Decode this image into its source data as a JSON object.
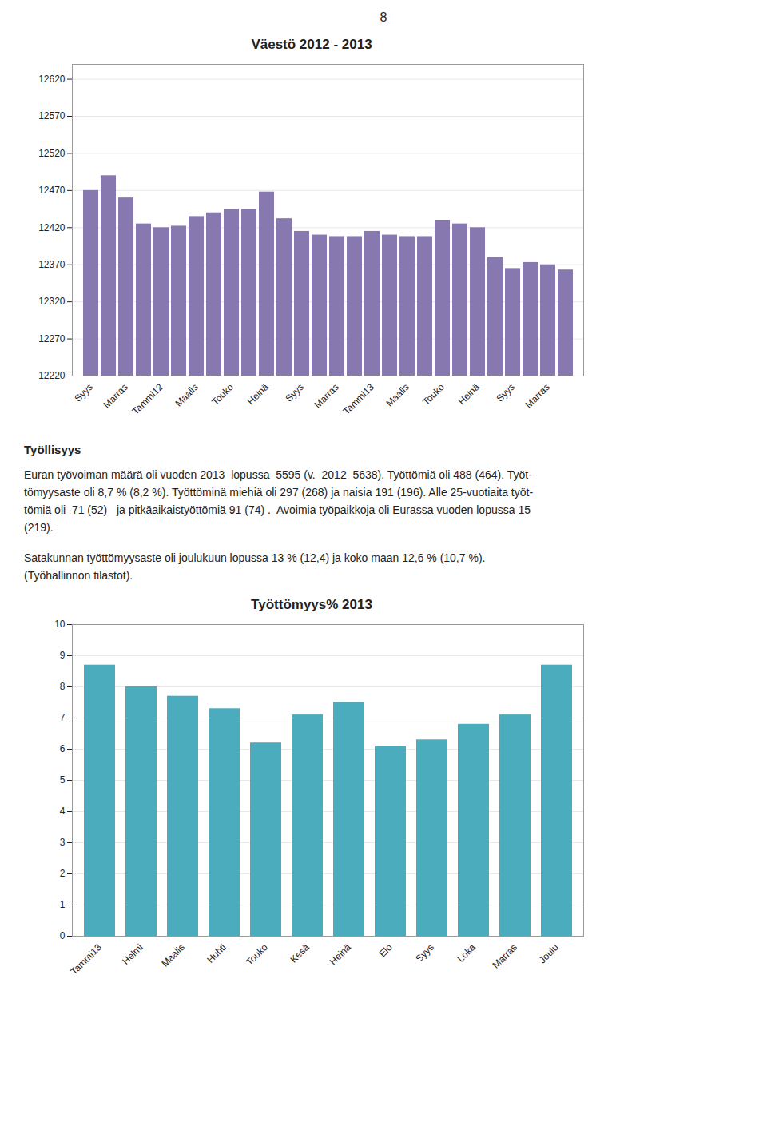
{
  "page_number": "8",
  "text": {
    "heading": "Työllisyys",
    "paragraphs": [
      [
        "Euran työvoiman määrä oli vuoden 2013  lopussa  5595 (v.  2012  5638). Työttömiä oli 488 (464). Työt-",
        "tömyysaste oli 8,7 % (8,2 %). Työttöminä miehiä oli 297 (268) ja naisia 191 (196). Alle 25-vuotiaita työt-",
        "tömiä oli  71 (52)   ja pitkäaikaistyöttömiä 91 (74) .  Avoimia työpaikkoja oli Eurassa vuoden lopussa 15",
        "(219)."
      ],
      [
        "Satakunnan työttömyysaste oli joulukuun lopussa 13 % (12,4) ja koko maan 12,6 % (10,7 %).",
        "(Työhallinnon tilastot)."
      ]
    ]
  },
  "chart_data": [
    {
      "type": "bar",
      "title": "Väestö 2012 - 2013",
      "categories": [
        "Syys",
        null,
        "Marras",
        null,
        "Tammi12",
        null,
        "Maalis",
        null,
        "Touko",
        null,
        "Heinä",
        null,
        "Syys",
        null,
        "Marras",
        null,
        "Tammi13",
        null,
        "Maalis",
        null,
        "Touko",
        null,
        "Heinä",
        null,
        "Syys",
        null,
        "Marras",
        null
      ],
      "values": [
        12470,
        12490,
        12460,
        12425,
        12420,
        12422,
        12435,
        12440,
        12445,
        12445,
        12468,
        12432,
        12415,
        12410,
        12408,
        12408,
        12415,
        12410,
        12408,
        12408,
        12430,
        12425,
        12420,
        12380,
        12365,
        12373,
        12370,
        12363
      ],
      "color": "#8878B0",
      "ylim": [
        12220,
        12640
      ],
      "yticks": [
        12220,
        12270,
        12320,
        12370,
        12420,
        12470,
        12520,
        12570,
        12620
      ],
      "grid": true
    },
    {
      "type": "bar",
      "title": "Työttömyys% 2013",
      "categories": [
        "Tammi13",
        "Helmi",
        "Maalis",
        "Huhti",
        "Touko",
        "Kesä",
        "Heinä",
        "Elo",
        "Syys",
        "Loka",
        "Marras",
        "Joulu"
      ],
      "values": [
        8.7,
        8.0,
        7.7,
        7.3,
        6.2,
        7.1,
        7.5,
        6.1,
        6.3,
        6.8,
        7.1,
        8.7
      ],
      "color": "#4AACBC",
      "ylim": [
        0,
        10
      ],
      "yticks": [
        0,
        1,
        2,
        3,
        4,
        5,
        6,
        7,
        8,
        9,
        10
      ],
      "grid": true
    }
  ]
}
